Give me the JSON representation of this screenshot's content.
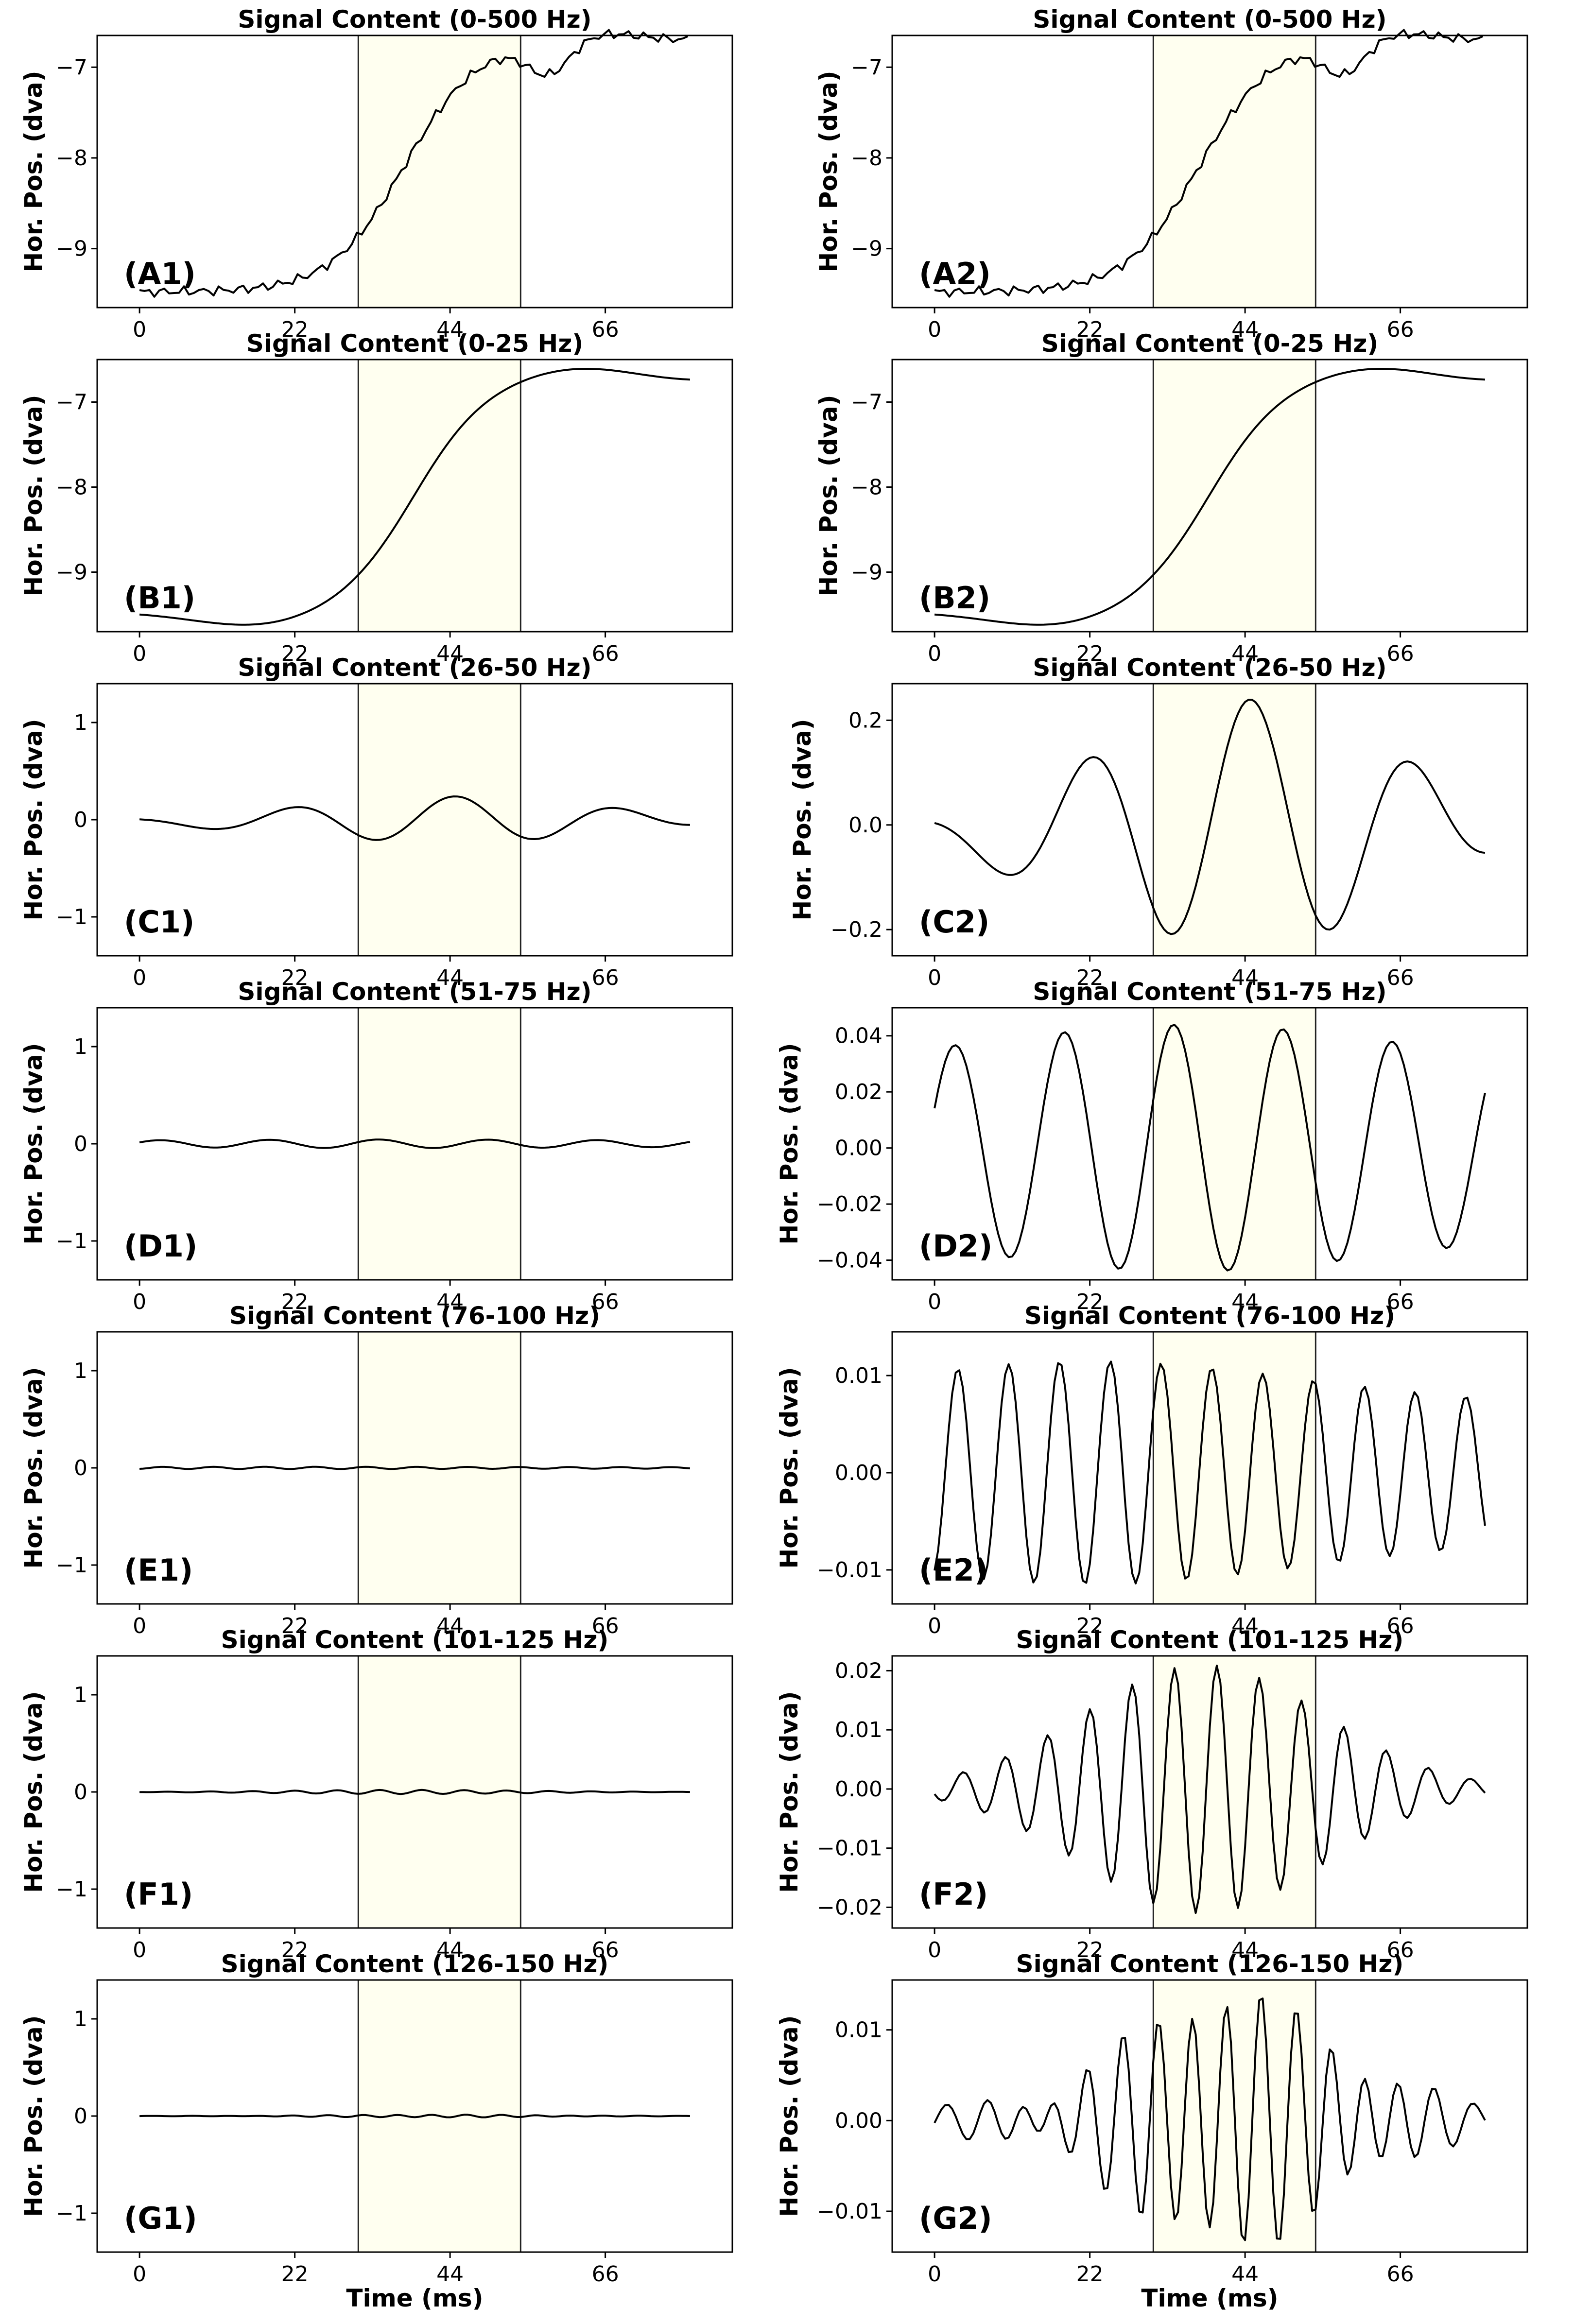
{
  "figure": {
    "xlabel": "Time (ms)",
    "highlight_color": "#fffff0",
    "line_color": "#000000"
  },
  "chart_data": [
    {
      "panel": "A1",
      "type": "line",
      "title": "Signal Content (0-500 Hz)",
      "xlabel": "",
      "ylabel": "Hor. Pos. (dva)",
      "signal": "raw",
      "amp": 1,
      "xlim": [
        -6,
        84
      ],
      "ylim": [
        -9.65,
        -6.65
      ],
      "xticks": [
        0,
        22,
        44,
        66
      ],
      "yticks": [
        -9,
        -8,
        -7
      ],
      "ytick_labels": [
        "−9",
        "−8",
        "−7"
      ],
      "highlight": [
        31,
        54
      ],
      "tag": "(A1)"
    },
    {
      "panel": "A2",
      "type": "line",
      "title": "Signal Content (0-500 Hz)",
      "xlabel": "",
      "ylabel": "Hor. Pos. (dva)",
      "signal": "raw",
      "amp": 1,
      "xlim": [
        -6,
        84
      ],
      "ylim": [
        -9.65,
        -6.65
      ],
      "xticks": [
        0,
        22,
        44,
        66
      ],
      "yticks": [
        -9,
        -8,
        -7
      ],
      "ytick_labels": [
        "−9",
        "−8",
        "−7"
      ],
      "highlight": [
        31,
        54
      ],
      "tag": "(A2)"
    },
    {
      "panel": "B1",
      "type": "line",
      "title": "Signal Content (0-25 Hz)",
      "xlabel": "",
      "ylabel": "Hor. Pos. (dva)",
      "signal": "smooth",
      "amp": 1,
      "xlim": [
        -6,
        84
      ],
      "ylim": [
        -9.7,
        -6.5
      ],
      "xticks": [
        0,
        22,
        44,
        66
      ],
      "yticks": [
        -9,
        -8,
        -7
      ],
      "ytick_labels": [
        "−9",
        "−8",
        "−7"
      ],
      "highlight": [
        31,
        54
      ],
      "tag": "(B1)"
    },
    {
      "panel": "B2",
      "type": "line",
      "title": "Signal Content (0-25 Hz)",
      "xlabel": "",
      "ylabel": "Hor. Pos. (dva)",
      "signal": "smooth",
      "amp": 1,
      "xlim": [
        -6,
        84
      ],
      "ylim": [
        -9.7,
        -6.5
      ],
      "xticks": [
        0,
        22,
        44,
        66
      ],
      "yticks": [
        -9,
        -8,
        -7
      ],
      "ytick_labels": [
        "−9",
        "−8",
        "−7"
      ],
      "highlight": [
        31,
        54
      ],
      "tag": "(B2)"
    },
    {
      "panel": "C1",
      "type": "line",
      "title": "Signal Content (26-50 Hz)",
      "xlabel": "",
      "ylabel": "Hor. Pos. (dva)",
      "signal": "c",
      "amp": 1,
      "xlim": [
        -6,
        84
      ],
      "ylim": [
        -1.4,
        1.4
      ],
      "xticks": [
        0,
        22,
        44,
        66
      ],
      "yticks": [
        -1,
        0,
        1
      ],
      "ytick_labels": [
        "−1",
        "0",
        "1"
      ],
      "highlight": [
        31,
        54
      ],
      "tag": "(C1)"
    },
    {
      "panel": "C2",
      "type": "line",
      "title": "Signal Content (26-50 Hz)",
      "xlabel": "",
      "ylabel": "Hor. Pos. (dva)",
      "signal": "c",
      "amp": 1,
      "xlim": [
        -6,
        84
      ],
      "ylim": [
        -0.25,
        0.27
      ],
      "xticks": [
        0,
        22,
        44,
        66
      ],
      "yticks": [
        -0.2,
        0,
        0.2
      ],
      "ytick_labels": [
        "−0.2",
        "0.0",
        "0.2"
      ],
      "highlight": [
        31,
        54
      ],
      "tag": "(C2)"
    },
    {
      "panel": "D1",
      "type": "line",
      "title": "Signal Content (51-75 Hz)",
      "xlabel": "",
      "ylabel": "Hor. Pos. (dva)",
      "signal": "d",
      "amp": 1,
      "xlim": [
        -6,
        84
      ],
      "ylim": [
        -1.4,
        1.4
      ],
      "xticks": [
        0,
        22,
        44,
        66
      ],
      "yticks": [
        -1,
        0,
        1
      ],
      "ytick_labels": [
        "−1",
        "0",
        "1"
      ],
      "highlight": [
        31,
        54
      ],
      "tag": "(D1)"
    },
    {
      "panel": "D2",
      "type": "line",
      "title": "Signal Content (51-75 Hz)",
      "xlabel": "",
      "ylabel": "Hor. Pos. (dva)",
      "signal": "d",
      "amp": 1,
      "xlim": [
        -6,
        84
      ],
      "ylim": [
        -0.047,
        0.05
      ],
      "xticks": [
        0,
        22,
        44,
        66
      ],
      "yticks": [
        -0.04,
        -0.02,
        0,
        0.02,
        0.04
      ],
      "ytick_labels": [
        "−0.04",
        "−0.02",
        "0.00",
        "0.02",
        "0.04"
      ],
      "highlight": [
        31,
        54
      ],
      "tag": "(D2)"
    },
    {
      "panel": "E1",
      "type": "line",
      "title": "Signal Content (76-100 Hz)",
      "xlabel": "",
      "ylabel": "Hor. Pos. (dva)",
      "signal": "e",
      "amp": 1,
      "xlim": [
        -6,
        84
      ],
      "ylim": [
        -1.4,
        1.4
      ],
      "xticks": [
        0,
        22,
        44,
        66
      ],
      "yticks": [
        -1,
        0,
        1
      ],
      "ytick_labels": [
        "−1",
        "0",
        "1"
      ],
      "highlight": [
        31,
        54
      ],
      "tag": "(E1)"
    },
    {
      "panel": "E2",
      "type": "line",
      "title": "Signal Content (76-100 Hz)",
      "xlabel": "",
      "ylabel": "Hor. Pos. (dva)",
      "signal": "e",
      "amp": 1,
      "xlim": [
        -6,
        84
      ],
      "ylim": [
        -0.0135,
        0.0145
      ],
      "xticks": [
        0,
        22,
        44,
        66
      ],
      "yticks": [
        -0.01,
        0,
        0.01
      ],
      "ytick_labels": [
        "−0.01",
        "0.00",
        "0.01"
      ],
      "highlight": [
        31,
        54
      ],
      "tag": "(E2)"
    },
    {
      "panel": "F1",
      "type": "line",
      "title": "Signal Content (101-125 Hz)",
      "xlabel": "",
      "ylabel": "Hor. Pos. (dva)",
      "signal": "f",
      "amp": 1,
      "xlim": [
        -6,
        84
      ],
      "ylim": [
        -1.4,
        1.4
      ],
      "xticks": [
        0,
        22,
        44,
        66
      ],
      "yticks": [
        -1,
        0,
        1
      ],
      "ytick_labels": [
        "−1",
        "0",
        "1"
      ],
      "highlight": [
        31,
        54
      ],
      "tag": "(F1)"
    },
    {
      "panel": "F2",
      "type": "line",
      "title": "Signal Content (101-125 Hz)",
      "xlabel": "",
      "ylabel": "Hor. Pos. (dva)",
      "signal": "f",
      "amp": 1,
      "xlim": [
        -6,
        84
      ],
      "ylim": [
        -0.0235,
        0.0225
      ],
      "xticks": [
        0,
        22,
        44,
        66
      ],
      "yticks": [
        -0.02,
        -0.01,
        0,
        0.01,
        0.02
      ],
      "ytick_labels": [
        "−0.02",
        "−0.01",
        "0.00",
        "0.01",
        "0.02"
      ],
      "highlight": [
        31,
        54
      ],
      "tag": "(F2)"
    },
    {
      "panel": "G1",
      "type": "line",
      "title": "Signal Content (126-150 Hz)",
      "xlabel": "Time (ms)",
      "ylabel": "Hor. Pos. (dva)",
      "signal": "g",
      "amp": 1,
      "xlim": [
        -6,
        84
      ],
      "ylim": [
        -1.4,
        1.4
      ],
      "xticks": [
        0,
        22,
        44,
        66
      ],
      "yticks": [
        -1,
        0,
        1
      ],
      "ytick_labels": [
        "−1",
        "0",
        "1"
      ],
      "highlight": [
        31,
        54
      ],
      "tag": "(G1)"
    },
    {
      "panel": "G2",
      "type": "line",
      "title": "Signal Content (126-150 Hz)",
      "xlabel": "Time (ms)",
      "ylabel": "Hor. Pos. (dva)",
      "signal": "g",
      "amp": 1,
      "xlim": [
        -6,
        84
      ],
      "ylim": [
        -0.0145,
        0.0155
      ],
      "xticks": [
        0,
        22,
        44,
        66
      ],
      "yticks": [
        -0.01,
        0,
        0.01
      ],
      "ytick_labels": [
        "−0.01",
        "0.00",
        "0.01"
      ],
      "highlight": [
        31,
        54
      ],
      "tag": "(G2)"
    }
  ]
}
